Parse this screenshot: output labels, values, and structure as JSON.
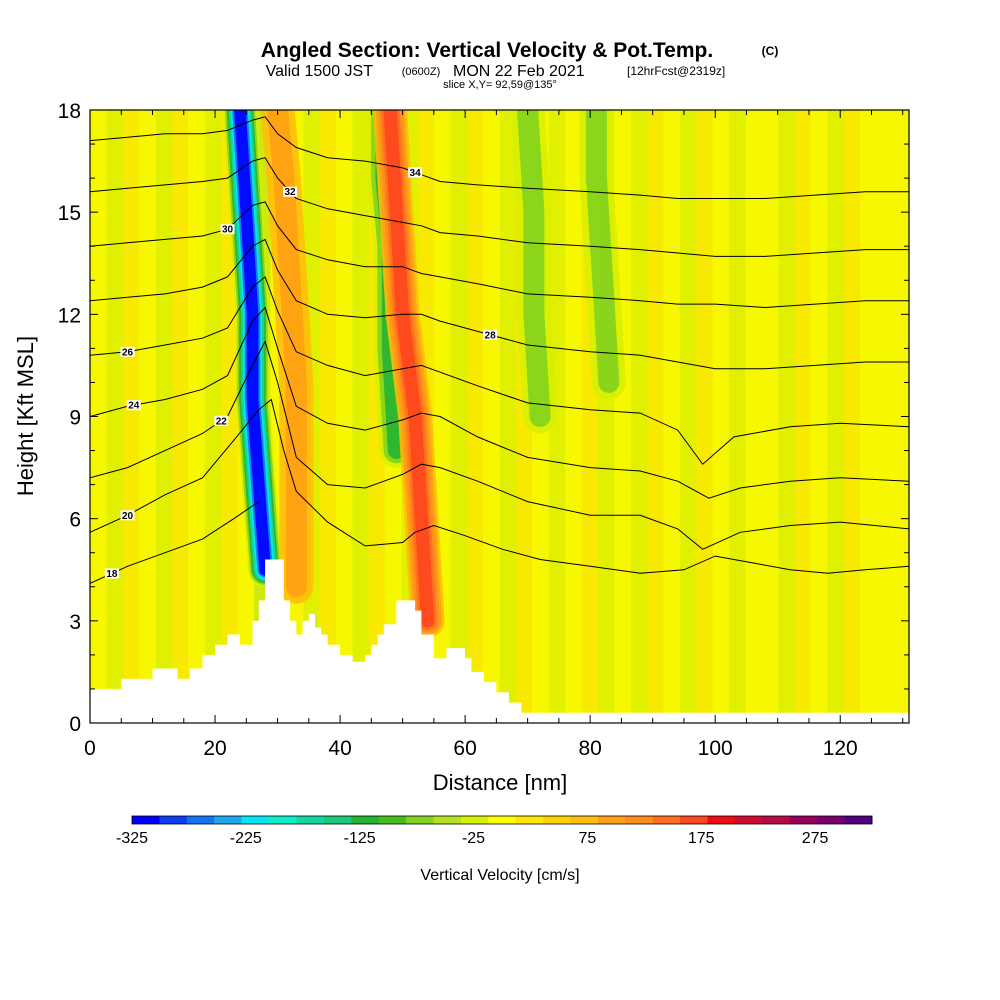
{
  "header": {
    "title": "Angled Section: Vertical Velocity & Pot.Temp.",
    "title_suffix": "(C)",
    "valid_prefix": "Valid 1500 JST",
    "valid_utc": "(0600Z)",
    "valid_date": "MON 22 Feb 2021",
    "forecast": "[12hrFcst@2319z]",
    "slice": "slice X,Y= 92,59@135°"
  },
  "chart_data": {
    "type": "heatmap",
    "xlabel": "Distance [nm]",
    "ylabel": "Height [Kft MSL]",
    "xlim": [
      0,
      131
    ],
    "ylim": [
      0,
      18
    ],
    "x_ticks": [
      0,
      20,
      40,
      60,
      80,
      100,
      120
    ],
    "y_ticks": [
      0,
      3,
      6,
      9,
      12,
      15,
      18
    ],
    "background_value_range": [
      -25,
      75
    ],
    "terrain": [
      [
        0,
        1
      ],
      [
        5,
        1
      ],
      [
        5,
        1.3
      ],
      [
        10,
        1.3
      ],
      [
        10,
        1.6
      ],
      [
        14,
        1.6
      ],
      [
        14,
        1.3
      ],
      [
        16,
        1.3
      ],
      [
        16,
        1.6
      ],
      [
        18,
        1.6
      ],
      [
        18,
        2.0
      ],
      [
        20,
        2.0
      ],
      [
        20,
        2.3
      ],
      [
        22,
        2.3
      ],
      [
        22,
        2.6
      ],
      [
        24,
        2.6
      ],
      [
        24,
        2.3
      ],
      [
        26,
        2.3
      ],
      [
        26,
        3.0
      ],
      [
        27,
        3.0
      ],
      [
        27,
        3.6
      ],
      [
        28,
        3.6
      ],
      [
        28,
        4.8
      ],
      [
        31,
        4.8
      ],
      [
        31,
        3.6
      ],
      [
        32,
        3.6
      ],
      [
        32,
        3.0
      ],
      [
        33,
        3.0
      ],
      [
        33,
        2.6
      ],
      [
        34,
        2.6
      ],
      [
        34,
        3.0
      ],
      [
        35,
        3.0
      ],
      [
        35,
        3.2
      ],
      [
        36,
        3.2
      ],
      [
        36,
        2.8
      ],
      [
        37,
        2.8
      ],
      [
        37,
        2.6
      ],
      [
        38,
        2.6
      ],
      [
        38,
        2.3
      ],
      [
        40,
        2.3
      ],
      [
        40,
        2.0
      ],
      [
        42,
        2.0
      ],
      [
        42,
        1.8
      ],
      [
        44,
        1.8
      ],
      [
        44,
        2.0
      ],
      [
        45,
        2.0
      ],
      [
        45,
        2.3
      ],
      [
        46,
        2.3
      ],
      [
        46,
        2.6
      ],
      [
        47,
        2.6
      ],
      [
        47,
        2.9
      ],
      [
        49,
        2.9
      ],
      [
        49,
        3.6
      ],
      [
        52,
        3.6
      ],
      [
        52,
        3.3
      ],
      [
        53,
        3.3
      ],
      [
        53,
        2.6
      ],
      [
        55,
        2.6
      ],
      [
        55,
        1.9
      ],
      [
        57,
        1.9
      ],
      [
        57,
        2.2
      ],
      [
        60,
        2.2
      ],
      [
        60,
        1.9
      ],
      [
        61,
        1.9
      ],
      [
        61,
        1.5
      ],
      [
        63,
        1.5
      ],
      [
        63,
        1.2
      ],
      [
        65,
        1.2
      ],
      [
        65,
        0.9
      ],
      [
        67,
        0.9
      ],
      [
        67,
        0.6
      ],
      [
        69,
        0.6
      ],
      [
        69,
        0.3
      ],
      [
        71,
        0.3
      ],
      [
        71,
        0.3
      ],
      [
        131,
        0.3
      ]
    ],
    "vertical_velocity_features": [
      {
        "kind": "downdraft",
        "path": [
          [
            28,
            4.5
          ],
          [
            27,
            7
          ],
          [
            26,
            9.5
          ],
          [
            26,
            12
          ],
          [
            25,
            15
          ],
          [
            24,
            18
          ]
        ],
        "min": -325
      },
      {
        "kind": "downdraft",
        "path": [
          [
            49,
            8
          ],
          [
            48,
            11
          ],
          [
            48,
            14
          ],
          [
            47,
            16
          ],
          [
            47,
            18
          ]
        ],
        "min": -150
      },
      {
        "kind": "downdraft",
        "path": [
          [
            72,
            9
          ],
          [
            71,
            12
          ],
          [
            71,
            15
          ],
          [
            70,
            18
          ]
        ],
        "min": -100
      },
      {
        "kind": "downdraft",
        "path": [
          [
            83,
            10
          ],
          [
            82,
            13
          ],
          [
            81,
            16
          ],
          [
            81,
            18
          ]
        ],
        "min": -75
      },
      {
        "kind": "updraft",
        "path": [
          [
            54,
            3
          ],
          [
            53,
            6
          ],
          [
            52,
            9
          ],
          [
            50,
            12
          ],
          [
            49,
            15
          ],
          [
            48,
            18
          ]
        ],
        "max": 175
      },
      {
        "kind": "updraft",
        "path": [
          [
            33,
            4
          ],
          [
            33,
            7
          ],
          [
            33,
            10
          ],
          [
            32,
            13
          ],
          [
            31,
            16
          ],
          [
            30,
            18
          ]
        ],
        "max": 100
      }
    ],
    "isentropes": [
      {
        "value": 18,
        "label_at": 3.5,
        "points": [
          [
            0,
            4.1
          ],
          [
            6,
            4.6
          ],
          [
            12,
            5.0
          ],
          [
            18,
            5.4
          ],
          [
            23,
            6.0
          ],
          [
            27,
            6.5
          ]
        ]
      },
      {
        "value": 20,
        "label_at": 6,
        "points": [
          [
            0,
            5.6
          ],
          [
            6,
            6.1
          ],
          [
            12,
            6.7
          ],
          [
            18,
            7.2
          ],
          [
            23,
            8.3
          ],
          [
            27,
            9.2
          ],
          [
            29,
            9.5
          ],
          [
            31,
            8.0
          ],
          [
            33,
            6.8
          ],
          [
            38,
            5.9
          ],
          [
            44,
            5.2
          ],
          [
            50,
            5.3
          ],
          [
            52,
            5.6
          ],
          [
            55,
            5.8
          ],
          [
            60,
            5.5
          ],
          [
            66,
            5.1
          ],
          [
            72,
            4.8
          ],
          [
            80,
            4.6
          ],
          [
            88,
            4.4
          ],
          [
            95,
            4.5
          ],
          [
            100,
            4.9
          ],
          [
            106,
            4.7
          ],
          [
            112,
            4.5
          ],
          [
            118,
            4.4
          ],
          [
            124,
            4.5
          ],
          [
            131,
            4.6
          ]
        ]
      },
      {
        "value": 22,
        "label_at": 21,
        "points": [
          [
            0,
            7.2
          ],
          [
            6,
            7.5
          ],
          [
            12,
            8.0
          ],
          [
            18,
            8.5
          ],
          [
            22,
            9.0
          ],
          [
            26,
            10.5
          ],
          [
            28,
            11.2
          ],
          [
            30,
            10.0
          ],
          [
            33,
            7.8
          ],
          [
            38,
            7.0
          ],
          [
            44,
            6.9
          ],
          [
            50,
            7.3
          ],
          [
            53,
            7.6
          ],
          [
            56,
            7.5
          ],
          [
            62,
            7.1
          ],
          [
            70,
            6.5
          ],
          [
            80,
            6.1
          ],
          [
            88,
            6.1
          ],
          [
            94,
            5.7
          ],
          [
            98,
            5.1
          ],
          [
            104,
            5.6
          ],
          [
            112,
            5.8
          ],
          [
            120,
            5.9
          ],
          [
            131,
            5.7
          ]
        ]
      },
      {
        "value": 24,
        "label_at": 7,
        "points": [
          [
            0,
            9.0
          ],
          [
            6,
            9.3
          ],
          [
            12,
            9.5
          ],
          [
            18,
            9.8
          ],
          [
            22,
            10.2
          ],
          [
            26,
            11.8
          ],
          [
            28,
            12.2
          ],
          [
            30,
            11.0
          ],
          [
            33,
            9.3
          ],
          [
            38,
            8.8
          ],
          [
            44,
            8.6
          ],
          [
            50,
            8.9
          ],
          [
            53,
            9.1
          ],
          [
            56,
            9.0
          ],
          [
            62,
            8.4
          ],
          [
            70,
            7.8
          ],
          [
            80,
            7.5
          ],
          [
            88,
            7.4
          ],
          [
            94,
            7.1
          ],
          [
            99,
            6.6
          ],
          [
            104,
            6.9
          ],
          [
            112,
            7.1
          ],
          [
            120,
            7.2
          ],
          [
            131,
            7.1
          ]
        ]
      },
      {
        "value": 26,
        "label_at": 6,
        "points": [
          [
            0,
            10.8
          ],
          [
            6,
            10.9
          ],
          [
            12,
            11.1
          ],
          [
            18,
            11.3
          ],
          [
            22,
            11.6
          ],
          [
            26,
            12.8
          ],
          [
            28,
            13.1
          ],
          [
            30,
            12.1
          ],
          [
            33,
            10.9
          ],
          [
            38,
            10.5
          ],
          [
            44,
            10.2
          ],
          [
            50,
            10.4
          ],
          [
            53,
            10.5
          ],
          [
            56,
            10.3
          ],
          [
            62,
            9.9
          ],
          [
            70,
            9.4
          ],
          [
            80,
            9.2
          ],
          [
            88,
            9.1
          ],
          [
            94,
            8.6
          ],
          [
            98,
            7.6
          ],
          [
            103,
            8.4
          ],
          [
            112,
            8.7
          ],
          [
            120,
            8.8
          ],
          [
            131,
            8.7
          ]
        ]
      },
      {
        "value": 28,
        "label_at": 64,
        "points": [
          [
            0,
            12.4
          ],
          [
            6,
            12.5
          ],
          [
            12,
            12.6
          ],
          [
            18,
            12.8
          ],
          [
            22,
            13.1
          ],
          [
            26,
            14.0
          ],
          [
            28,
            14.2
          ],
          [
            30,
            13.3
          ],
          [
            33,
            12.4
          ],
          [
            38,
            12.0
          ],
          [
            44,
            11.9
          ],
          [
            50,
            12.0
          ],
          [
            53,
            12.0
          ],
          [
            56,
            11.8
          ],
          [
            62,
            11.5
          ],
          [
            70,
            11.1
          ],
          [
            80,
            10.9
          ],
          [
            88,
            10.8
          ],
          [
            94,
            10.6
          ],
          [
            100,
            10.4
          ],
          [
            108,
            10.4
          ],
          [
            116,
            10.5
          ],
          [
            124,
            10.6
          ],
          [
            131,
            10.6
          ]
        ]
      },
      {
        "value": 30,
        "label_at": 22,
        "points": [
          [
            0,
            14.0
          ],
          [
            6,
            14.1
          ],
          [
            12,
            14.2
          ],
          [
            18,
            14.3
          ],
          [
            22,
            14.5
          ],
          [
            26,
            15.2
          ],
          [
            28,
            15.3
          ],
          [
            30,
            14.6
          ],
          [
            33,
            13.9
          ],
          [
            38,
            13.6
          ],
          [
            44,
            13.4
          ],
          [
            50,
            13.4
          ],
          [
            53,
            13.2
          ],
          [
            56,
            13.1
          ],
          [
            62,
            12.9
          ],
          [
            70,
            12.6
          ],
          [
            80,
            12.5
          ],
          [
            88,
            12.4
          ],
          [
            94,
            12.3
          ],
          [
            100,
            12.3
          ],
          [
            108,
            12.2
          ],
          [
            116,
            12.3
          ],
          [
            124,
            12.4
          ],
          [
            131,
            12.4
          ]
        ]
      },
      {
        "value": 32,
        "label_at": 32,
        "points": [
          [
            0,
            15.6
          ],
          [
            6,
            15.7
          ],
          [
            12,
            15.8
          ],
          [
            18,
            15.9
          ],
          [
            22,
            16.0
          ],
          [
            26,
            16.5
          ],
          [
            28,
            16.6
          ],
          [
            30,
            16.0
          ],
          [
            33,
            15.4
          ],
          [
            38,
            15.1
          ],
          [
            44,
            14.9
          ],
          [
            50,
            14.7
          ],
          [
            53,
            14.6
          ],
          [
            56,
            14.4
          ],
          [
            62,
            14.3
          ],
          [
            70,
            14.1
          ],
          [
            80,
            14.0
          ],
          [
            88,
            13.9
          ],
          [
            94,
            13.8
          ],
          [
            100,
            13.7
          ],
          [
            108,
            13.7
          ],
          [
            116,
            13.8
          ],
          [
            124,
            13.9
          ],
          [
            131,
            13.9
          ]
        ]
      },
      {
        "value": 34,
        "label_at": 52,
        "points": [
          [
            0,
            17.1
          ],
          [
            6,
            17.2
          ],
          [
            12,
            17.3
          ],
          [
            18,
            17.3
          ],
          [
            22,
            17.4
          ],
          [
            26,
            17.7
          ],
          [
            28,
            17.8
          ],
          [
            30,
            17.3
          ],
          [
            33,
            16.9
          ],
          [
            38,
            16.6
          ],
          [
            44,
            16.5
          ],
          [
            50,
            16.3
          ],
          [
            53,
            16.1
          ],
          [
            56,
            15.9
          ],
          [
            62,
            15.8
          ],
          [
            70,
            15.7
          ],
          [
            80,
            15.6
          ],
          [
            88,
            15.5
          ],
          [
            94,
            15.4
          ],
          [
            100,
            15.4
          ],
          [
            108,
            15.4
          ],
          [
            116,
            15.5
          ],
          [
            124,
            15.6
          ],
          [
            131,
            15.6
          ]
        ]
      }
    ],
    "colorbar": {
      "label": "Vertical Velocity [cm/s]",
      "min": -325,
      "max": 325,
      "step": 25,
      "tick_labels": [
        "-325",
        "-225",
        "-125",
        "-25",
        "75",
        "175",
        "275"
      ],
      "colors": [
        "#0000ff",
        "#0a3cf5",
        "#1473f0",
        "#1ea6ee",
        "#05e6f5",
        "#0af0c8",
        "#14d7a0",
        "#19c878",
        "#23b432",
        "#46be1e",
        "#82d21e",
        "#b4e11e",
        "#d7f000",
        "#ffff00",
        "#ffe600",
        "#ffd200",
        "#ffbe0a",
        "#ffa014",
        "#ff8c1e",
        "#ff6e1e",
        "#ff461e",
        "#f00a14",
        "#d20a32",
        "#b40a46",
        "#96005a",
        "#78006e",
        "#500082"
      ]
    }
  }
}
